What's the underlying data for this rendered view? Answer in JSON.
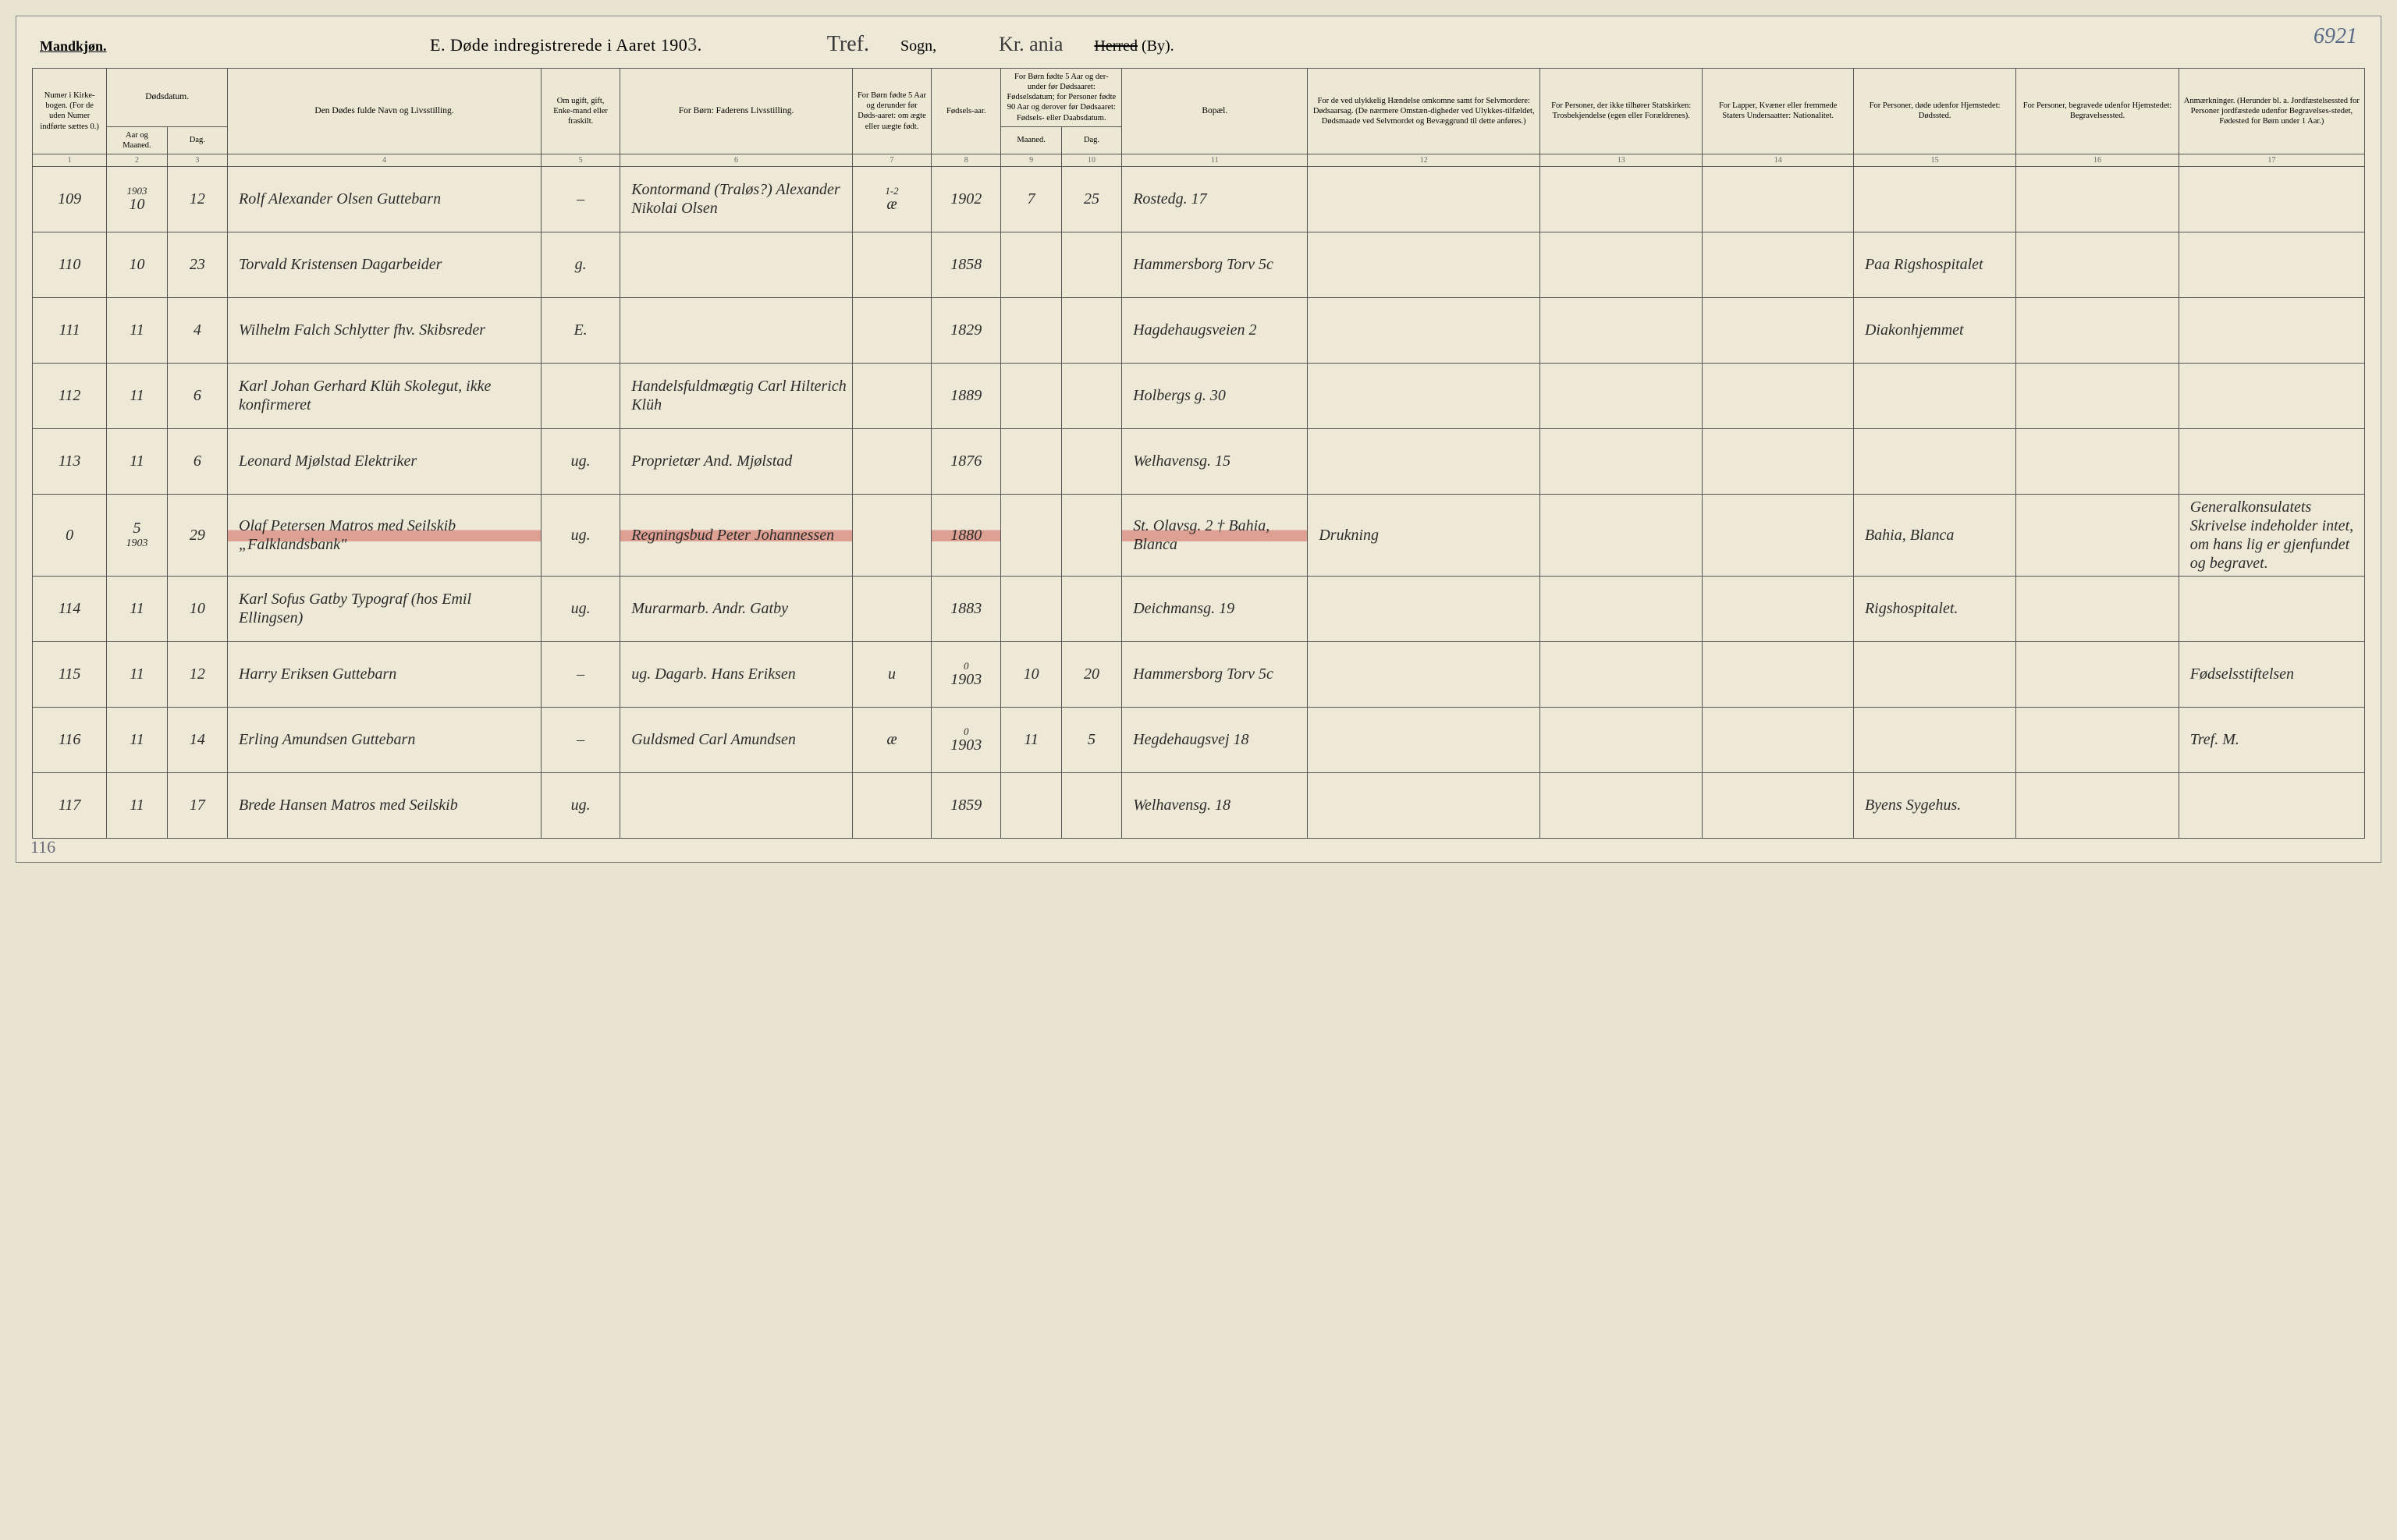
{
  "page_number_topright": "6921",
  "page_number_bottomleft": "116",
  "header": {
    "gender": "Mandkjøn.",
    "title_prefix": "E.  Døde indregistrerede i Aaret 190",
    "year_suffix": "3",
    "title_period": ".",
    "sogn_script": "Tref.",
    "sogn_label": "Sogn,",
    "herred_script": "Kr. ania",
    "herred_strike": "Herred",
    "herred_paren": " (By)."
  },
  "columns": {
    "c1": "Numer i Kirke-bogen. (For de uden Numer indførte sættes 0.)",
    "c2_top": "Dødsdatum.",
    "c2": "Aar og Maaned.",
    "c3": "Dag.",
    "c4": "Den Dødes fulde Navn og Livsstilling.",
    "c5": "Om ugift, gift, Enke-mand eller fraskilt.",
    "c6": "For Børn: Faderens Livsstilling.",
    "c7": "For Børn fødte 5 Aar og derunder før Døds-aaret: om ægte eller uægte født.",
    "c8": "Fødsels-aar.",
    "c9_10_top": "For Børn fødte 5 Aar og der-under før Dødsaaret: Fødselsdatum; for Personer fødte 90 Aar og derover før Dødsaaret: Fødsels- eller Daabsdatum.",
    "c9": "Maaned.",
    "c10": "Dag.",
    "c11": "Bopæl.",
    "c12": "For de ved ulykkelig Hændelse omkomne samt for Selvmordere: Dødsaarsag. (De nærmere Omstæn-digheder ved Ulykkes-tilfældet, Dødsmaade ved Selvmordet og Bevæggrund til dette anføres.)",
    "c13": "For Personer, der ikke tilhører Statskirken: Trosbekjendelse (egen eller Forældrenes).",
    "c14": "For Lapper, Kvæner eller fremmede Staters Undersaatter: Nationalitet.",
    "c15": "For Personer, døde udenfor Hjemstedet: Dødssted.",
    "c16": "For Personer, begravede udenfor Hjemstedet: Begravelsessted.",
    "c17": "Anmærkninger. (Herunder bl. a. Jordfæstelsessted for Personer jordfæstede udenfor Begravelses-stedet, Fødested for Børn under 1 Aar.)"
  },
  "colnums": [
    "1",
    "2",
    "3",
    "4",
    "5",
    "6",
    "7",
    "8",
    "9",
    "10",
    "11",
    "12",
    "13",
    "14",
    "15",
    "16",
    "17"
  ],
  "rows": [
    {
      "num": "109",
      "year_above": "1903",
      "month": "10",
      "day": "12",
      "name": "Rolf Alexander Olsen  Guttebarn",
      "civil": "–",
      "father": "Kontormand (Traløs?) Alexander Nikolai Olsen",
      "legit": "æ",
      "legit_above": "1-2",
      "birth": "1902",
      "bm": "7",
      "bd": "25",
      "addr": "Rostedg. 17",
      "cause": "",
      "faith": "",
      "nat": "",
      "died": "",
      "buried": "",
      "notes": ""
    },
    {
      "num": "110",
      "month": "10",
      "day": "23",
      "name": "Torvald Kristensen  Dagarbeider",
      "civil": "g.",
      "father": "",
      "legit": "",
      "birth": "1858",
      "bm": "",
      "bd": "",
      "addr": "Hammersborg Torv 5c",
      "cause": "",
      "faith": "",
      "nat": "",
      "died": "Paa Rigshospitalet",
      "buried": "",
      "notes": ""
    },
    {
      "num": "111",
      "month": "11",
      "day": "4",
      "name": "Wilhelm Falch Schlytter  fhv. Skibsreder",
      "civil": "E.",
      "father": "",
      "legit": "",
      "birth": "1829",
      "bm": "",
      "bd": "",
      "addr": "Hagdehaugsveien 2",
      "cause": "",
      "faith": "",
      "nat": "",
      "died": "Diakonhjemmet",
      "buried": "",
      "notes": ""
    },
    {
      "num": "112",
      "month": "11",
      "day": "6",
      "name": "Karl Johan Gerhard Klüh  Skolegut, ikke konfirmeret",
      "civil": "",
      "father": "Handelsfuldmægtig Carl Hilterich Klüh",
      "legit": "",
      "birth": "1889",
      "bm": "",
      "bd": "",
      "addr": "Holbergs g. 30",
      "cause": "",
      "faith": "",
      "nat": "",
      "died": "",
      "buried": "",
      "notes": ""
    },
    {
      "num": "113",
      "month": "11",
      "day": "6",
      "name": "Leonard Mjølstad  Elektriker",
      "civil": "ug.",
      "father": "Proprietær And. Mjølstad",
      "legit": "",
      "birth": "1876",
      "bm": "",
      "bd": "",
      "addr": "Welhavensg. 15",
      "cause": "",
      "faith": "",
      "nat": "",
      "died": "",
      "buried": "",
      "notes": ""
    },
    {
      "num": "0",
      "month": "5",
      "month_below": "1903",
      "day": "29",
      "name": "Olaf Petersen  Matros med Seilskib „Falklandsbank\"",
      "civil": "ug.",
      "father": "Regningsbud Peter Johannessen",
      "legit": "",
      "birth": "1880",
      "bm": "",
      "bd": "",
      "addr": "St. Olavsg. 2  † Bahia, Blanca",
      "cause": "Drukning",
      "faith": "",
      "nat": "",
      "died": "Bahia, Blanca",
      "buried": "",
      "notes": "Generalkonsulatets Skrivelse indeholder intet, om hans lig er gjenfundet og begravet.",
      "red": true
    },
    {
      "num": "114",
      "month": "11",
      "day": "10",
      "name": "Karl Sofus Gatby  Typograf (hos Emil Ellingsen)",
      "civil": "ug.",
      "father": "Murarmarb. Andr. Gatby",
      "legit": "",
      "birth": "1883",
      "bm": "",
      "bd": "",
      "addr": "Deichmansg. 19",
      "cause": "",
      "faith": "",
      "nat": "",
      "died": "Rigshospitalet.",
      "buried": "",
      "notes": ""
    },
    {
      "num": "115",
      "month": "11",
      "day": "12",
      "name": "Harry Eriksen  Guttebarn",
      "civil": "–",
      "father": "ug. Dagarb. Hans Eriksen",
      "legit": "u",
      "birth_above": "0",
      "birth": "1903",
      "bm": "10",
      "bd": "20",
      "addr": "Hammersborg Torv 5c",
      "cause": "",
      "faith": "",
      "nat": "",
      "died": "",
      "buried": "",
      "notes": "Fødselsstiftelsen"
    },
    {
      "num": "116",
      "month": "11",
      "day": "14",
      "name": "Erling Amundsen  Guttebarn",
      "civil": "–",
      "father": "Guldsmed Carl Amundsen",
      "legit": "æ",
      "birth_above": "0",
      "birth": "1903",
      "bm": "11",
      "bd": "5",
      "addr": "Hegdehaugsvej 18",
      "cause": "",
      "faith": "",
      "nat": "",
      "died": "",
      "buried": "",
      "notes": "Tref. M."
    },
    {
      "num": "117",
      "month": "11",
      "day": "17",
      "name": "Brede Hansen  Matros med Seilskib",
      "civil": "ug.",
      "father": "",
      "legit": "",
      "birth": "1859",
      "bm": "",
      "bd": "",
      "addr": "Welhavensg. 18",
      "cause": "",
      "faith": "",
      "nat": "",
      "died": "Byens Sygehus.",
      "buried": "",
      "notes": ""
    }
  ]
}
